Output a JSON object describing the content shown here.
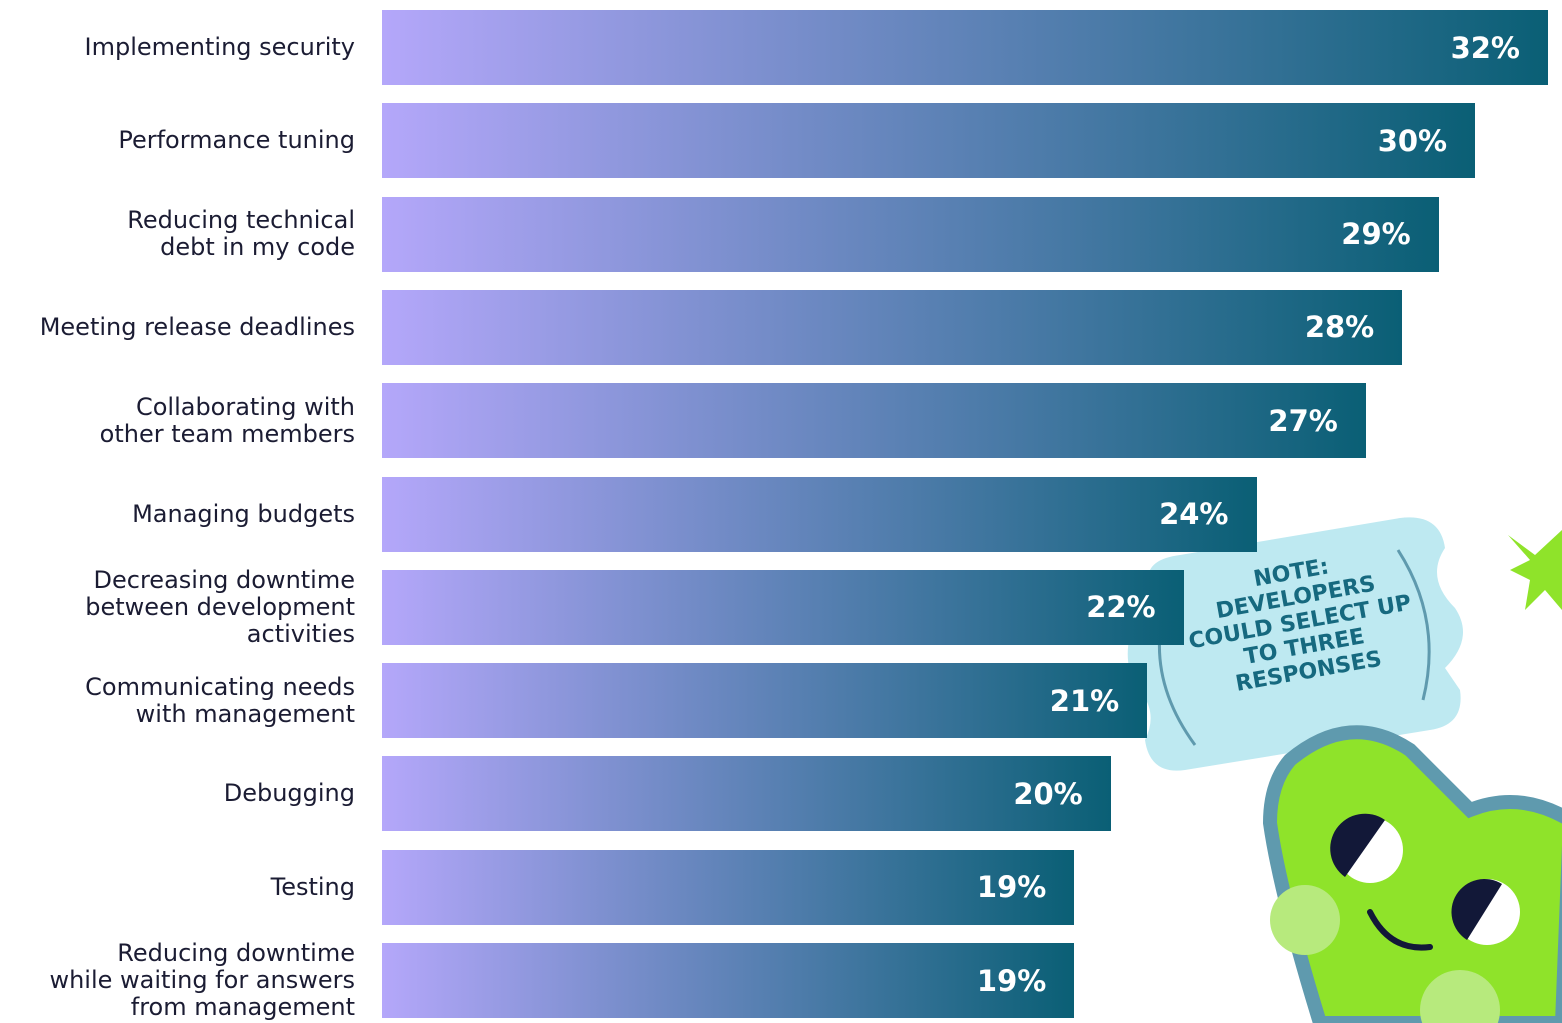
{
  "chart_data": {
    "type": "bar",
    "orientation": "horizontal",
    "categories": [
      "Implementing security",
      "Performance tuning",
      "Reducing technical\ndebt in my code",
      "Meeting release deadlines",
      "Collaborating with\nother team members",
      "Managing budgets",
      "Decreasing downtime\nbetween development\nactivities",
      "Communicating needs\nwith management",
      "Debugging",
      "Testing",
      "Reducing downtime\nwhile waiting for answers\nfrom management"
    ],
    "values": [
      32,
      30,
      29,
      28,
      27,
      24,
      22,
      21,
      20,
      19,
      19
    ],
    "value_labels": [
      "32%",
      "30%",
      "29%",
      "28%",
      "27%",
      "24%",
      "22%",
      "21%",
      "20%",
      "19%",
      "19%"
    ],
    "colors": [
      "#b4a7fa",
      "#0a5f75"
    ],
    "annotation": "NOTE:\nDEVELOPERS\nCOULD SELECT UP\nTO THREE\nRESPONSES"
  }
}
